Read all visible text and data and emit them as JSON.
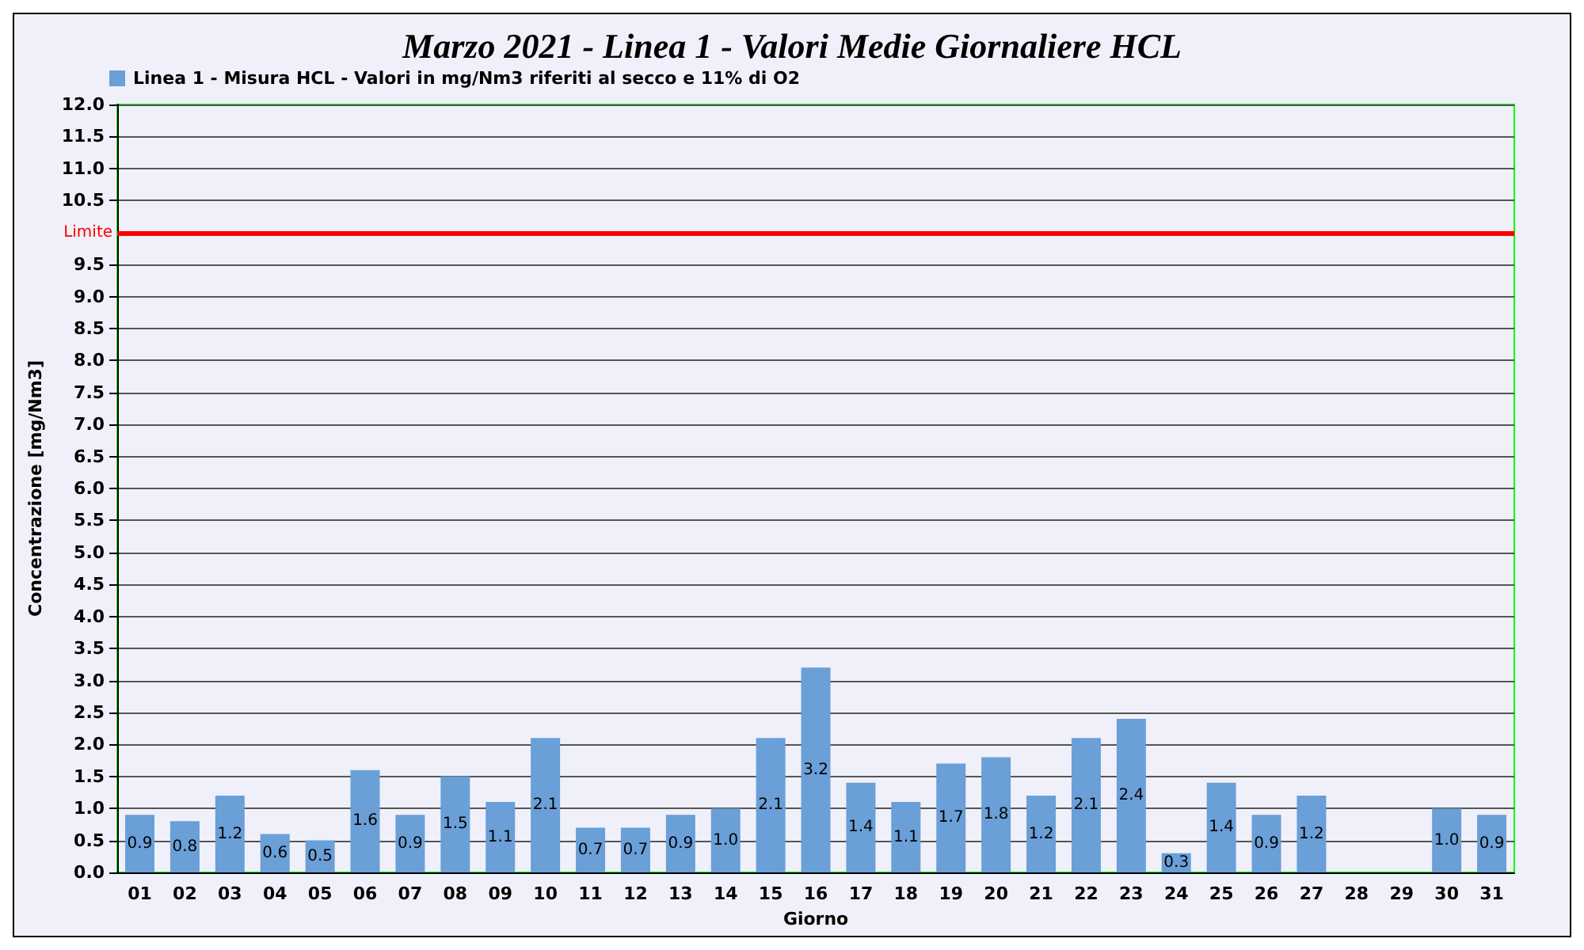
{
  "chart_data": {
    "type": "bar",
    "title": "Marzo 2021 - Linea 1 - Valori Medie Giornaliere HCL",
    "xlabel": "Giorno",
    "ylabel": "Concentrazione [mg/Nm3]",
    "categories": [
      "01",
      "02",
      "03",
      "04",
      "05",
      "06",
      "07",
      "08",
      "09",
      "10",
      "11",
      "12",
      "13",
      "14",
      "15",
      "16",
      "17",
      "18",
      "19",
      "20",
      "21",
      "22",
      "23",
      "24",
      "25",
      "26",
      "27",
      "28",
      "29",
      "30",
      "31"
    ],
    "series": [
      {
        "name": "Linea 1 - Misura HCL - Valori in mg/Nm3 riferiti al secco e 11% di O2",
        "color": "#6a9fd8",
        "values": [
          0.9,
          0.8,
          1.2,
          0.6,
          0.5,
          1.6,
          0.9,
          1.5,
          1.1,
          2.1,
          0.7,
          0.7,
          0.9,
          1.0,
          2.1,
          3.2,
          1.4,
          1.1,
          1.7,
          1.8,
          1.2,
          2.1,
          2.4,
          0.3,
          1.4,
          0.9,
          1.2,
          0,
          0,
          1.0,
          0.9
        ],
        "value_labels": [
          "0.9",
          "0.8",
          "1.2",
          "0.6",
          "0.5",
          "1.6",
          "0.9",
          "1.5",
          "1.1",
          "2.1",
          "0.7",
          "0.7",
          "0.9",
          "1.0",
          "2.1",
          "3.2",
          "1.4",
          "1.1",
          "1.7",
          "1.8",
          "1.2",
          "2.1",
          "2.4",
          "0.3",
          "1.4",
          "0.9",
          "1.2",
          null,
          null,
          "1.0",
          "0.9"
        ]
      }
    ],
    "ylim": [
      0,
      12
    ],
    "yticks": [
      {
        "value": 0,
        "label": "0.0"
      },
      {
        "value": 0.5,
        "label": "0.5"
      },
      {
        "value": 1,
        "label": "1.0"
      },
      {
        "value": 1.5,
        "label": "1.5"
      },
      {
        "value": 2,
        "label": "2.0"
      },
      {
        "value": 2.5,
        "label": "2.5"
      },
      {
        "value": 3,
        "label": "3.0"
      },
      {
        "value": 3.5,
        "label": "3.5"
      },
      {
        "value": 4,
        "label": "4.0"
      },
      {
        "value": 4.5,
        "label": "4.5"
      },
      {
        "value": 5,
        "label": "5.0"
      },
      {
        "value": 5.5,
        "label": "5.5"
      },
      {
        "value": 6,
        "label": "6.0"
      },
      {
        "value": 6.5,
        "label": "6.5"
      },
      {
        "value": 7,
        "label": "7.0"
      },
      {
        "value": 7.5,
        "label": "7.5"
      },
      {
        "value": 8,
        "label": "8.0"
      },
      {
        "value": 8.5,
        "label": "8.5"
      },
      {
        "value": 9,
        "label": "9.0"
      },
      {
        "value": 9.5,
        "label": "9.5"
      },
      {
        "value": 10.5,
        "label": "10.5"
      },
      {
        "value": 11,
        "label": "11.0"
      },
      {
        "value": 11.5,
        "label": "11.5"
      },
      {
        "value": 12,
        "label": "12.0"
      }
    ],
    "ref_lines": [
      {
        "axis": "y",
        "value": 10,
        "label": "Limite",
        "color": "#ff0000"
      }
    ],
    "grid": "y",
    "legend": "top left"
  }
}
